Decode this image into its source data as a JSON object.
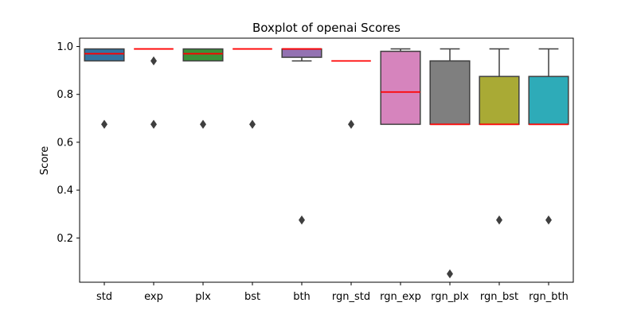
{
  "chart_data": {
    "type": "box",
    "title": "Boxplot of openai Scores",
    "xlabel": "",
    "ylabel": "Score",
    "ylim": [
      0.015,
      1.035
    ],
    "yticks": [
      0.2,
      0.4,
      0.6,
      0.8,
      1.0
    ],
    "ytick_labels": [
      "0.2",
      "0.4",
      "0.6",
      "0.8",
      "1.0"
    ],
    "median_color": "#ff0000",
    "categories": [
      "std",
      "exp",
      "plx",
      "bst",
      "bth",
      "rgn_std",
      "rgn_exp",
      "rgn_plx",
      "rgn_bst",
      "rgn_bth"
    ],
    "boxes": [
      {
        "category": "std",
        "color": "#3274a1",
        "q1": 0.94,
        "median": 0.97,
        "q3": 0.99,
        "whisker_low": 0.94,
        "whisker_high": 0.99,
        "outliers": [
          0.675
        ]
      },
      {
        "category": "exp",
        "color": "#e1812c",
        "q1": 0.99,
        "median": 0.99,
        "q3": 0.99,
        "whisker_low": 0.99,
        "whisker_high": 0.99,
        "outliers": [
          0.94,
          0.675
        ]
      },
      {
        "category": "plx",
        "color": "#3a923a",
        "q1": 0.94,
        "median": 0.97,
        "q3": 0.99,
        "whisker_low": 0.94,
        "whisker_high": 0.99,
        "outliers": [
          0.675
        ]
      },
      {
        "category": "bst",
        "color": "#c03d3e",
        "q1": 0.99,
        "median": 0.99,
        "q3": 0.99,
        "whisker_low": 0.99,
        "whisker_high": 0.99,
        "outliers": [
          0.675
        ]
      },
      {
        "category": "bth",
        "color": "#9372b2",
        "q1": 0.955,
        "median": 0.99,
        "q3": 0.99,
        "whisker_low": 0.94,
        "whisker_high": 0.99,
        "outliers": [
          0.275
        ]
      },
      {
        "category": "rgn_std",
        "color": "#845b53",
        "q1": 0.94,
        "median": 0.94,
        "q3": 0.94,
        "whisker_low": 0.94,
        "whisker_high": 0.94,
        "outliers": [
          0.675
        ]
      },
      {
        "category": "rgn_exp",
        "color": "#d684bd",
        "q1": 0.675,
        "median": 0.81,
        "q3": 0.98,
        "whisker_low": 0.675,
        "whisker_high": 0.99,
        "outliers": []
      },
      {
        "category": "rgn_plx",
        "color": "#7f7f7f",
        "q1": 0.675,
        "median": 0.675,
        "q3": 0.94,
        "whisker_low": 0.675,
        "whisker_high": 0.99,
        "outliers": [
          0.05
        ]
      },
      {
        "category": "rgn_bst",
        "color": "#a9aa35",
        "q1": 0.675,
        "median": 0.675,
        "q3": 0.875,
        "whisker_low": 0.675,
        "whisker_high": 0.99,
        "outliers": [
          0.275
        ]
      },
      {
        "category": "rgn_bth",
        "color": "#2eabb8",
        "q1": 0.675,
        "median": 0.675,
        "q3": 0.875,
        "whisker_low": 0.675,
        "whisker_high": 0.99,
        "outliers": [
          0.275
        ]
      }
    ]
  }
}
